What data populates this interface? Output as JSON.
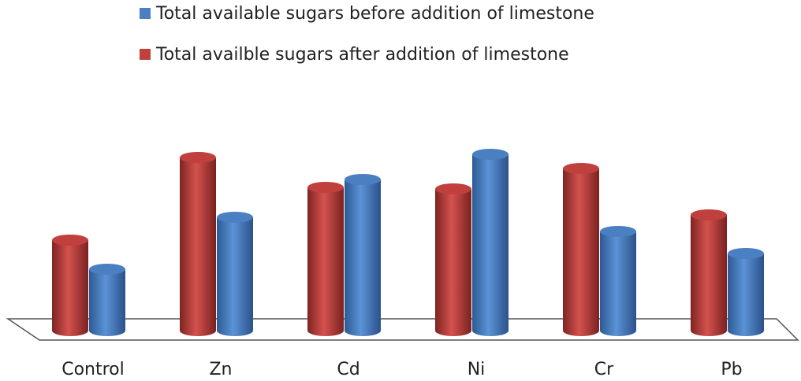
{
  "chart_data": {
    "type": "bar3d",
    "categories": [
      "Control",
      "Zn",
      "Cd",
      "Ni",
      "Cr",
      "Pb"
    ],
    "series": [
      {
        "name": "Total available sugars before addition of limestone",
        "color": "#4a7fc1",
        "values": [
          78,
          144,
          192,
          224,
          126,
          98
        ]
      },
      {
        "name": "Total availble sugars after addition of limestone",
        "color": "#c0403d",
        "values": [
          115,
          220,
          182,
          180,
          206,
          147
        ]
      }
    ],
    "ylim": [
      0,
      240
    ]
  }
}
